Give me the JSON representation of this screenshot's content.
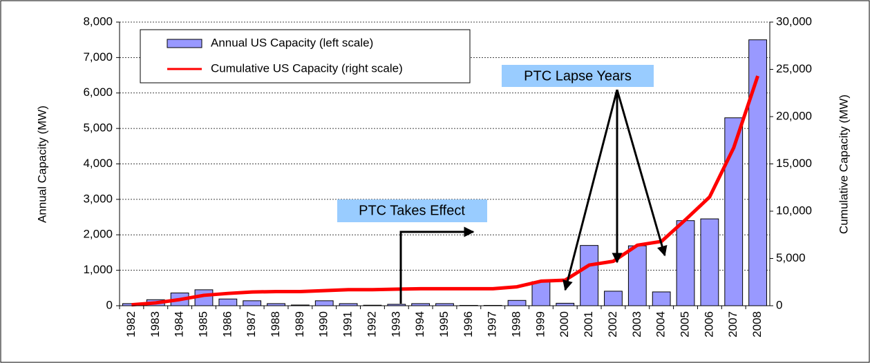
{
  "chart_data": {
    "type": "bar",
    "y_label": "Annual Capacity (MW)",
    "y2_label": "Cumulative Capacity (MW)",
    "annotations": [
      "PTC Lapse Years",
      "PTC Takes Effect"
    ],
    "categories": [
      "1982",
      "1983",
      "1984",
      "1985",
      "1986",
      "1987",
      "1988",
      "1989",
      "1990",
      "1991",
      "1992",
      "1993",
      "1994",
      "1995",
      "1996",
      "1997",
      "1998",
      "1999",
      "2000",
      "2001",
      "2002",
      "2003",
      "2004",
      "2005",
      "2006",
      "2007",
      "2008"
    ],
    "series": [
      {
        "name": "Annual US Capacity (left scale)",
        "type": "bar",
        "color": "#9999ff",
        "values": [
          60,
          170,
          360,
          450,
          190,
          140,
          60,
          20,
          140,
          60,
          15,
          40,
          60,
          60,
          10,
          10,
          150,
          680,
          70,
          1700,
          410,
          1690,
          390,
          2400,
          2450,
          5300,
          7500
        ]
      },
      {
        "name": "Cumulative US Capacity (right scale)",
        "type": "line",
        "axis": "y2",
        "color": "#ff0000",
        "values": [
          100,
          300,
          650,
          1100,
          1300,
          1450,
          1500,
          1500,
          1600,
          1700,
          1700,
          1750,
          1800,
          1800,
          1800,
          1800,
          2000,
          2600,
          2700,
          4300,
          4700,
          6400,
          6800,
          9100,
          11500,
          16700,
          24300
        ]
      }
    ],
    "ylim": [
      0,
      8000
    ],
    "yticks": [
      0,
      {
        "value": 1000,
        "label": "1,000"
      },
      {
        "value": 2000,
        "label": "2,000"
      },
      {
        "value": 3000,
        "label": "3,000"
      },
      {
        "value": 4000,
        "label": "4,000"
      },
      {
        "value": 5000,
        "label": "5,000"
      },
      {
        "value": 6000,
        "label": "6,000"
      },
      {
        "value": 7000,
        "label": "7,000"
      },
      {
        "value": 8000,
        "label": "8,000"
      }
    ],
    "y2lim": [
      0,
      30000
    ],
    "y2ticks": [
      0,
      {
        "value": 5000,
        "label": "5,000"
      },
      {
        "value": 10000,
        "label": "10,000"
      },
      {
        "value": 15000,
        "label": "15,000"
      },
      {
        "value": 20000,
        "label": "20,000"
      },
      {
        "value": 25000,
        "label": "25,000"
      },
      {
        "value": 30000,
        "label": "30,000"
      }
    ],
    "grid": true
  }
}
